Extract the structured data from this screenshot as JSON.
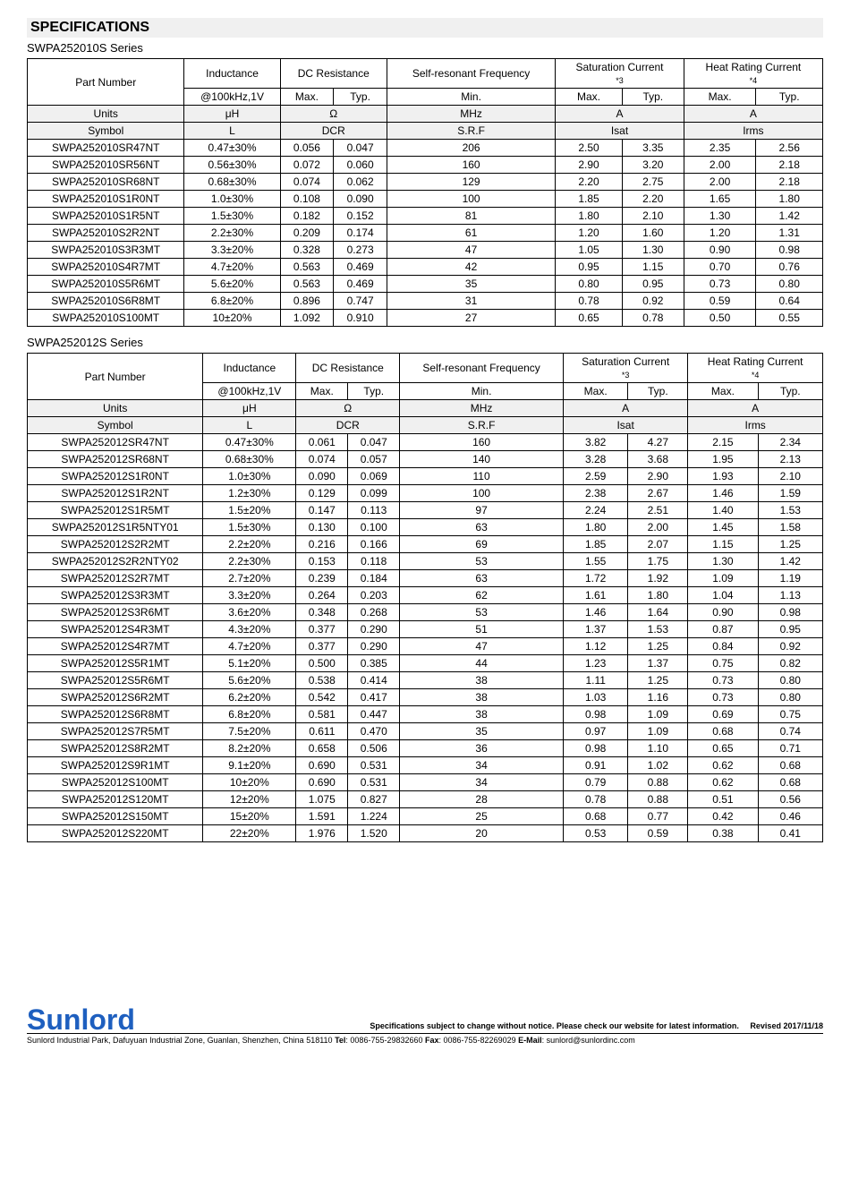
{
  "section_title": "SPECIFICATIONS",
  "headers": {
    "part_number": "Part Number",
    "inductance": "Inductance",
    "dc_resistance": "DC Resistance",
    "srf": "Self-resonant Frequency",
    "isat": "Saturation Current",
    "irms": "Heat Rating Current",
    "isat_note": "*3",
    "irms_note": "*4",
    "cond": "@100kHz,1V",
    "max": "Max.",
    "typ": "Typ.",
    "min": "Min.",
    "units_label": "Units",
    "symbol_label": "Symbol",
    "u_uh": "μH",
    "u_ohm": "Ω",
    "u_mhz": "MHz",
    "u_a": "A",
    "s_L": "L",
    "s_DCR": "DCR",
    "s_SRF": "S.R.F",
    "s_Isat": "Isat",
    "s_Irms": "Irms"
  },
  "series1": {
    "title": "SWPA252010S Series",
    "rows": [
      {
        "pn": "SWPA252010SR47NT",
        "ind": "0.47±30%",
        "dcrmax": "0.056",
        "dcrtyp": "0.047",
        "srf": "206",
        "isatmax": "2.50",
        "isattyp": "3.35",
        "irmsmax": "2.35",
        "irmstyp": "2.56"
      },
      {
        "pn": "SWPA252010SR56NT",
        "ind": "0.56±30%",
        "dcrmax": "0.072",
        "dcrtyp": "0.060",
        "srf": "160",
        "isatmax": "2.90",
        "isattyp": "3.20",
        "irmsmax": "2.00",
        "irmstyp": "2.18"
      },
      {
        "pn": "SWPA252010SR68NT",
        "ind": "0.68±30%",
        "dcrmax": "0.074",
        "dcrtyp": "0.062",
        "srf": "129",
        "isatmax": "2.20",
        "isattyp": "2.75",
        "irmsmax": "2.00",
        "irmstyp": "2.18"
      },
      {
        "pn": "SWPA252010S1R0NT",
        "ind": "1.0±30%",
        "dcrmax": "0.108",
        "dcrtyp": "0.090",
        "srf": "100",
        "isatmax": "1.85",
        "isattyp": "2.20",
        "irmsmax": "1.65",
        "irmstyp": "1.80"
      },
      {
        "pn": "SWPA252010S1R5NT",
        "ind": "1.5±30%",
        "dcrmax": "0.182",
        "dcrtyp": "0.152",
        "srf": "81",
        "isatmax": "1.80",
        "isattyp": "2.10",
        "irmsmax": "1.30",
        "irmstyp": "1.42"
      },
      {
        "pn": "SWPA252010S2R2NT",
        "ind": "2.2±30%",
        "dcrmax": "0.209",
        "dcrtyp": "0.174",
        "srf": "61",
        "isatmax": "1.20",
        "isattyp": "1.60",
        "irmsmax": "1.20",
        "irmstyp": "1.31"
      },
      {
        "pn": "SWPA252010S3R3MT",
        "ind": "3.3±20%",
        "dcrmax": "0.328",
        "dcrtyp": "0.273",
        "srf": "47",
        "isatmax": "1.05",
        "isattyp": "1.30",
        "irmsmax": "0.90",
        "irmstyp": "0.98"
      },
      {
        "pn": "SWPA252010S4R7MT",
        "ind": "4.7±20%",
        "dcrmax": "0.563",
        "dcrtyp": "0.469",
        "srf": "42",
        "isatmax": "0.95",
        "isattyp": "1.15",
        "irmsmax": "0.70",
        "irmstyp": "0.76"
      },
      {
        "pn": "SWPA252010S5R6MT",
        "ind": "5.6±20%",
        "dcrmax": "0.563",
        "dcrtyp": "0.469",
        "srf": "35",
        "isatmax": "0.80",
        "isattyp": "0.95",
        "irmsmax": "0.73",
        "irmstyp": "0.80"
      },
      {
        "pn": "SWPA252010S6R8MT",
        "ind": "6.8±20%",
        "dcrmax": "0.896",
        "dcrtyp": "0.747",
        "srf": "31",
        "isatmax": "0.78",
        "isattyp": "0.92",
        "irmsmax": "0.59",
        "irmstyp": "0.64"
      },
      {
        "pn": "SWPA252010S100MT",
        "ind": "10±20%",
        "dcrmax": "1.092",
        "dcrtyp": "0.910",
        "srf": "27",
        "isatmax": "0.65",
        "isattyp": "0.78",
        "irmsmax": "0.50",
        "irmstyp": "0.55"
      }
    ]
  },
  "series2": {
    "title": "SWPA252012S Series",
    "rows": [
      {
        "pn": "SWPA252012SR47NT",
        "ind": "0.47±30%",
        "dcrmax": "0.061",
        "dcrtyp": "0.047",
        "srf": "160",
        "isatmax": "3.82",
        "isattyp": "4.27",
        "irmsmax": "2.15",
        "irmstyp": "2.34"
      },
      {
        "pn": "SWPA252012SR68NT",
        "ind": "0.68±30%",
        "dcrmax": "0.074",
        "dcrtyp": "0.057",
        "srf": "140",
        "isatmax": "3.28",
        "isattyp": "3.68",
        "irmsmax": "1.95",
        "irmstyp": "2.13"
      },
      {
        "pn": "SWPA252012S1R0NT",
        "ind": "1.0±30%",
        "dcrmax": "0.090",
        "dcrtyp": "0.069",
        "srf": "110",
        "isatmax": "2.59",
        "isattyp": "2.90",
        "irmsmax": "1.93",
        "irmstyp": "2.10"
      },
      {
        "pn": "SWPA252012S1R2NT",
        "ind": "1.2±30%",
        "dcrmax": "0.129",
        "dcrtyp": "0.099",
        "srf": "100",
        "isatmax": "2.38",
        "isattyp": "2.67",
        "irmsmax": "1.46",
        "irmstyp": "1.59"
      },
      {
        "pn": "SWPA252012S1R5MT",
        "ind": "1.5±20%",
        "dcrmax": "0.147",
        "dcrtyp": "0.113",
        "srf": "97",
        "isatmax": "2.24",
        "isattyp": "2.51",
        "irmsmax": "1.40",
        "irmstyp": "1.53"
      },
      {
        "pn": "SWPA252012S1R5NTY01",
        "ind": "1.5±30%",
        "dcrmax": "0.130",
        "dcrtyp": "0.100",
        "srf": "63",
        "isatmax": "1.80",
        "isattyp": "2.00",
        "irmsmax": "1.45",
        "irmstyp": "1.58"
      },
      {
        "pn": "SWPA252012S2R2MT",
        "ind": "2.2±20%",
        "dcrmax": "0.216",
        "dcrtyp": "0.166",
        "srf": "69",
        "isatmax": "1.85",
        "isattyp": "2.07",
        "irmsmax": "1.15",
        "irmstyp": "1.25"
      },
      {
        "pn": "SWPA252012S2R2NTY02",
        "ind": "2.2±30%",
        "dcrmax": "0.153",
        "dcrtyp": "0.118",
        "srf": "53",
        "isatmax": "1.55",
        "isattyp": "1.75",
        "irmsmax": "1.30",
        "irmstyp": "1.42"
      },
      {
        "pn": "SWPA252012S2R7MT",
        "ind": "2.7±20%",
        "dcrmax": "0.239",
        "dcrtyp": "0.184",
        "srf": "63",
        "isatmax": "1.72",
        "isattyp": "1.92",
        "irmsmax": "1.09",
        "irmstyp": "1.19"
      },
      {
        "pn": "SWPA252012S3R3MT",
        "ind": "3.3±20%",
        "dcrmax": "0.264",
        "dcrtyp": "0.203",
        "srf": "62",
        "isatmax": "1.61",
        "isattyp": "1.80",
        "irmsmax": "1.04",
        "irmstyp": "1.13"
      },
      {
        "pn": "SWPA252012S3R6MT",
        "ind": "3.6±20%",
        "dcrmax": "0.348",
        "dcrtyp": "0.268",
        "srf": "53",
        "isatmax": "1.46",
        "isattyp": "1.64",
        "irmsmax": "0.90",
        "irmstyp": "0.98"
      },
      {
        "pn": "SWPA252012S4R3MT",
        "ind": "4.3±20%",
        "dcrmax": "0.377",
        "dcrtyp": "0.290",
        "srf": "51",
        "isatmax": "1.37",
        "isattyp": "1.53",
        "irmsmax": "0.87",
        "irmstyp": "0.95"
      },
      {
        "pn": "SWPA252012S4R7MT",
        "ind": "4.7±20%",
        "dcrmax": "0.377",
        "dcrtyp": "0.290",
        "srf": "47",
        "isatmax": "1.12",
        "isattyp": "1.25",
        "irmsmax": "0.84",
        "irmstyp": "0.92"
      },
      {
        "pn": "SWPA252012S5R1MT",
        "ind": "5.1±20%",
        "dcrmax": "0.500",
        "dcrtyp": "0.385",
        "srf": "44",
        "isatmax": "1.23",
        "isattyp": "1.37",
        "irmsmax": "0.75",
        "irmstyp": "0.82"
      },
      {
        "pn": "SWPA252012S5R6MT",
        "ind": "5.6±20%",
        "dcrmax": "0.538",
        "dcrtyp": "0.414",
        "srf": "38",
        "isatmax": "1.11",
        "isattyp": "1.25",
        "irmsmax": "0.73",
        "irmstyp": "0.80"
      },
      {
        "pn": "SWPA252012S6R2MT",
        "ind": "6.2±20%",
        "dcrmax": "0.542",
        "dcrtyp": "0.417",
        "srf": "38",
        "isatmax": "1.03",
        "isattyp": "1.16",
        "irmsmax": "0.73",
        "irmstyp": "0.80"
      },
      {
        "pn": "SWPA252012S6R8MT",
        "ind": "6.8±20%",
        "dcrmax": "0.581",
        "dcrtyp": "0.447",
        "srf": "38",
        "isatmax": "0.98",
        "isattyp": "1.09",
        "irmsmax": "0.69",
        "irmstyp": "0.75"
      },
      {
        "pn": "SWPA252012S7R5MT",
        "ind": "7.5±20%",
        "dcrmax": "0.611",
        "dcrtyp": "0.470",
        "srf": "35",
        "isatmax": "0.97",
        "isattyp": "1.09",
        "irmsmax": "0.68",
        "irmstyp": "0.74"
      },
      {
        "pn": "SWPA252012S8R2MT",
        "ind": "8.2±20%",
        "dcrmax": "0.658",
        "dcrtyp": "0.506",
        "srf": "36",
        "isatmax": "0.98",
        "isattyp": "1.10",
        "irmsmax": "0.65",
        "irmstyp": "0.71"
      },
      {
        "pn": "SWPA252012S9R1MT",
        "ind": "9.1±20%",
        "dcrmax": "0.690",
        "dcrtyp": "0.531",
        "srf": "34",
        "isatmax": "0.91",
        "isattyp": "1.02",
        "irmsmax": "0.62",
        "irmstyp": "0.68"
      },
      {
        "pn": "SWPA252012S100MT",
        "ind": "10±20%",
        "dcrmax": "0.690",
        "dcrtyp": "0.531",
        "srf": "34",
        "isatmax": "0.79",
        "isattyp": "0.88",
        "irmsmax": "0.62",
        "irmstyp": "0.68"
      },
      {
        "pn": "SWPA252012S120MT",
        "ind": "12±20%",
        "dcrmax": "1.075",
        "dcrtyp": "0.827",
        "srf": "28",
        "isatmax": "0.78",
        "isattyp": "0.88",
        "irmsmax": "0.51",
        "irmstyp": "0.56"
      },
      {
        "pn": "SWPA252012S150MT",
        "ind": "15±20%",
        "dcrmax": "1.591",
        "dcrtyp": "1.224",
        "srf": "25",
        "isatmax": "0.68",
        "isattyp": "0.77",
        "irmsmax": "0.42",
        "irmstyp": "0.46"
      },
      {
        "pn": "SWPA252012S220MT",
        "ind": "22±20%",
        "dcrmax": "1.976",
        "dcrtyp": "1.520",
        "srf": "20",
        "isatmax": "0.53",
        "isattyp": "0.59",
        "irmsmax": "0.38",
        "irmstyp": "0.41"
      }
    ]
  },
  "footer": {
    "brand": "Sunlord",
    "disclaimer": "Specifications subject to change without notice. Please check our website for latest information.",
    "revised": "Revised 2017/11/18",
    "address": "Sunlord Industrial Park, Dafuyuan Industrial Zone, Guanlan, Shenzhen, China 518110",
    "tel_label": "Tel",
    "tel": ": 0086-755-29832660 ",
    "fax_label": "Fax",
    "fax": ": 0086-755-82269029 ",
    "email_label": "E-Mail",
    "email": ": sunlord@sunlordinc.com"
  }
}
